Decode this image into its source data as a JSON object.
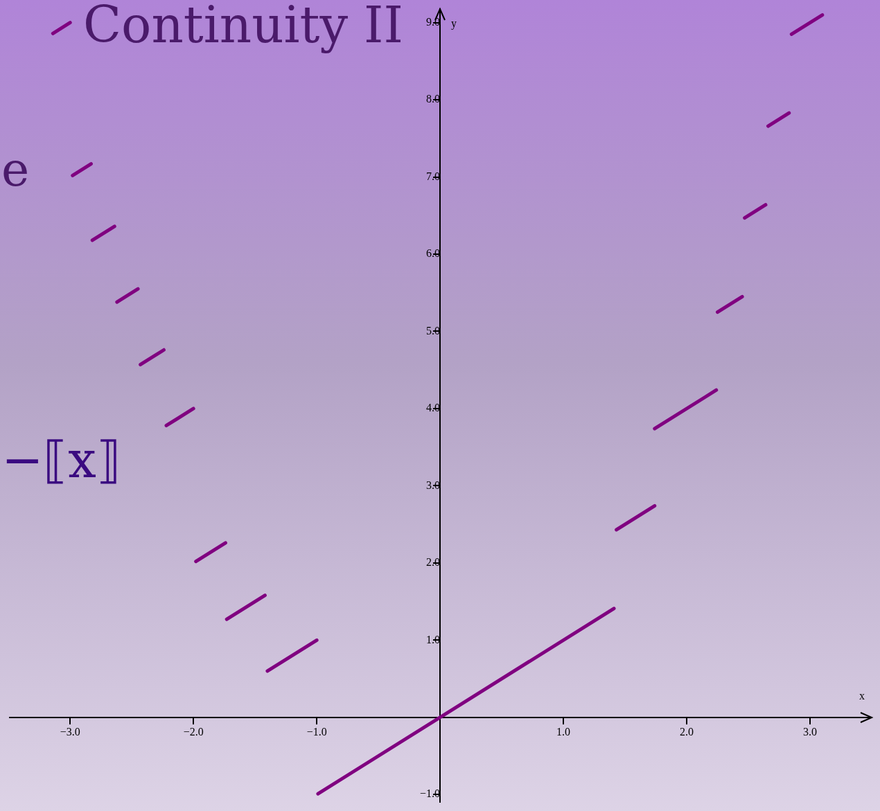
{
  "chart_data": {
    "type": "line",
    "title": "Continuity II",
    "xlabel": "x",
    "ylabel": "y",
    "annotations": [
      "e",
      "−⟦x⟧"
    ],
    "xlim": [
      -3.49,
      3.5
    ],
    "ylim": [
      -1.1,
      9.18
    ],
    "xticks": [
      {
        "value": -3,
        "label": "−3.0"
      },
      {
        "value": -2,
        "label": "−2.0"
      },
      {
        "value": -1,
        "label": "−1.0"
      },
      {
        "value": 1,
        "label": "1.0"
      },
      {
        "value": 2,
        "label": "2.0"
      },
      {
        "value": 3,
        "label": "3.0"
      }
    ],
    "yticks": [
      {
        "value": -1,
        "label": "−1.0"
      },
      {
        "value": 1,
        "label": "1.0"
      },
      {
        "value": 2,
        "label": "2.0"
      },
      {
        "value": 3,
        "label": "3.0"
      },
      {
        "value": 4,
        "label": "4.0"
      },
      {
        "value": 5,
        "label": "5.0"
      },
      {
        "value": 6,
        "label": "6.0"
      },
      {
        "value": 7,
        "label": "7.0"
      },
      {
        "value": 8,
        "label": "8.0"
      },
      {
        "value": 9,
        "label": "9.0"
      }
    ],
    "grid": false,
    "legend": false,
    "marker": "none",
    "line_style": "solid",
    "series": [
      {
        "color": "#800080",
        "x": [
          -0.99,
          1.41
        ],
        "values": [
          -0.99,
          1.41
        ]
      },
      {
        "color": "#800080",
        "x": [
          1.43,
          1.74
        ],
        "values": [
          2.43,
          2.74
        ]
      },
      {
        "color": "#800080",
        "x": [
          1.74,
          2.24
        ],
        "values": [
          3.74,
          4.24
        ]
      },
      {
        "color": "#800080",
        "x": [
          2.25,
          2.45
        ],
        "values": [
          5.25,
          5.45
        ]
      },
      {
        "color": "#800080",
        "x": [
          2.47,
          2.64
        ],
        "values": [
          6.47,
          6.64
        ]
      },
      {
        "color": "#800080",
        "x": [
          2.66,
          2.83
        ],
        "values": [
          7.66,
          7.83
        ]
      },
      {
        "color": "#800080",
        "x": [
          2.85,
          3.1
        ],
        "values": [
          8.85,
          9.1
        ]
      },
      {
        "color": "#800080",
        "x": [
          -1.4,
          -1.0
        ],
        "values": [
          0.6,
          1.0
        ]
      },
      {
        "color": "#800080",
        "x": [
          -1.73,
          -1.42
        ],
        "values": [
          1.27,
          1.58
        ]
      },
      {
        "color": "#800080",
        "x": [
          -1.98,
          -1.74
        ],
        "values": [
          2.02,
          2.26
        ]
      },
      {
        "color": "#800080",
        "x": [
          -2.22,
          -2.0
        ],
        "values": [
          3.78,
          4.0
        ]
      },
      {
        "color": "#800080",
        "x": [
          -2.43,
          -2.24
        ],
        "values": [
          4.57,
          4.76
        ]
      },
      {
        "color": "#800080",
        "x": [
          -2.62,
          -2.45
        ],
        "values": [
          5.38,
          5.55
        ]
      },
      {
        "color": "#800080",
        "x": [
          -2.82,
          -2.64
        ],
        "values": [
          6.18,
          6.36
        ]
      },
      {
        "color": "#800080",
        "x": [
          -2.98,
          -2.83
        ],
        "values": [
          7.02,
          7.17
        ]
      },
      {
        "color": "#800080",
        "x": [
          -3.14,
          -3.0
        ],
        "values": [
          8.86,
          9.0
        ]
      }
    ]
  }
}
